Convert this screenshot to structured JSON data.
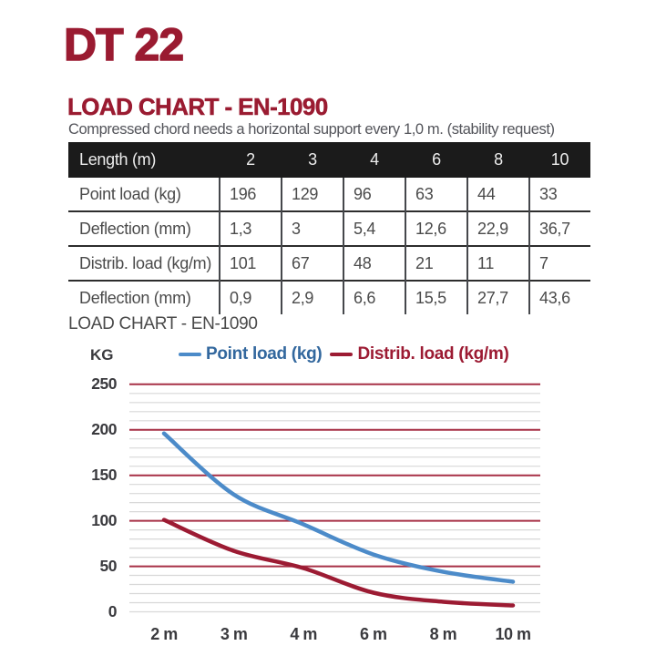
{
  "page": {
    "product_title": "DT 22",
    "section_heading": "LOAD CHART - EN-1090",
    "subtitle": "Compressed chord needs a horizontal support every 1,0 m. (stability request)"
  },
  "table": {
    "header_label": "Length (m)",
    "header_columns": [
      "2",
      "3",
      "4",
      "6",
      "8",
      "10"
    ],
    "rows": [
      {
        "label": "Point load (kg)",
        "values": [
          "196",
          "129",
          "96",
          "63",
          "44",
          "33"
        ]
      },
      {
        "label": "Deflection (mm)",
        "values": [
          "1,3",
          "3",
          "5,4",
          "12,6",
          "22,9",
          "36,7"
        ]
      },
      {
        "label": "Distrib. load (kg/m)",
        "values": [
          "101",
          "67",
          "48",
          "21",
          "11",
          "7"
        ]
      },
      {
        "label": "Deflection (mm)",
        "values": [
          "0,9",
          "2,9",
          "6,6",
          "15,5",
          "27,7",
          "43,6"
        ]
      }
    ]
  },
  "chart_data": {
    "type": "line",
    "title": "LOAD CHART - EN-1090",
    "y_axis_label": "KG",
    "categories": [
      "2 m",
      "3 m",
      "4 m",
      "6 m",
      "8 m",
      "10 m"
    ],
    "series": [
      {
        "name": "Point load (kg)",
        "color": "#4C8BC9",
        "text_color": "#33689E",
        "values": [
          196,
          129,
          96,
          63,
          44,
          33
        ]
      },
      {
        "name": "Distrib. load (kg/m)",
        "color": "#9C1B33",
        "text_color": "#9C1B33",
        "values": [
          101,
          67,
          48,
          21,
          11,
          7
        ]
      }
    ],
    "ylim": [
      0,
      250
    ],
    "yticks": [
      0,
      50,
      100,
      150,
      200,
      250
    ],
    "y_minor_step": 10,
    "grid": {
      "major_color": "#A73046",
      "minor_color": "#D8D8D8",
      "major_every": 50
    },
    "legend_position": "top-center"
  },
  "colors": {
    "brand_maroon": "#9A1B31",
    "table_header_bg": "#1B1B1B",
    "body_text_gray": "#4B4B4B"
  }
}
